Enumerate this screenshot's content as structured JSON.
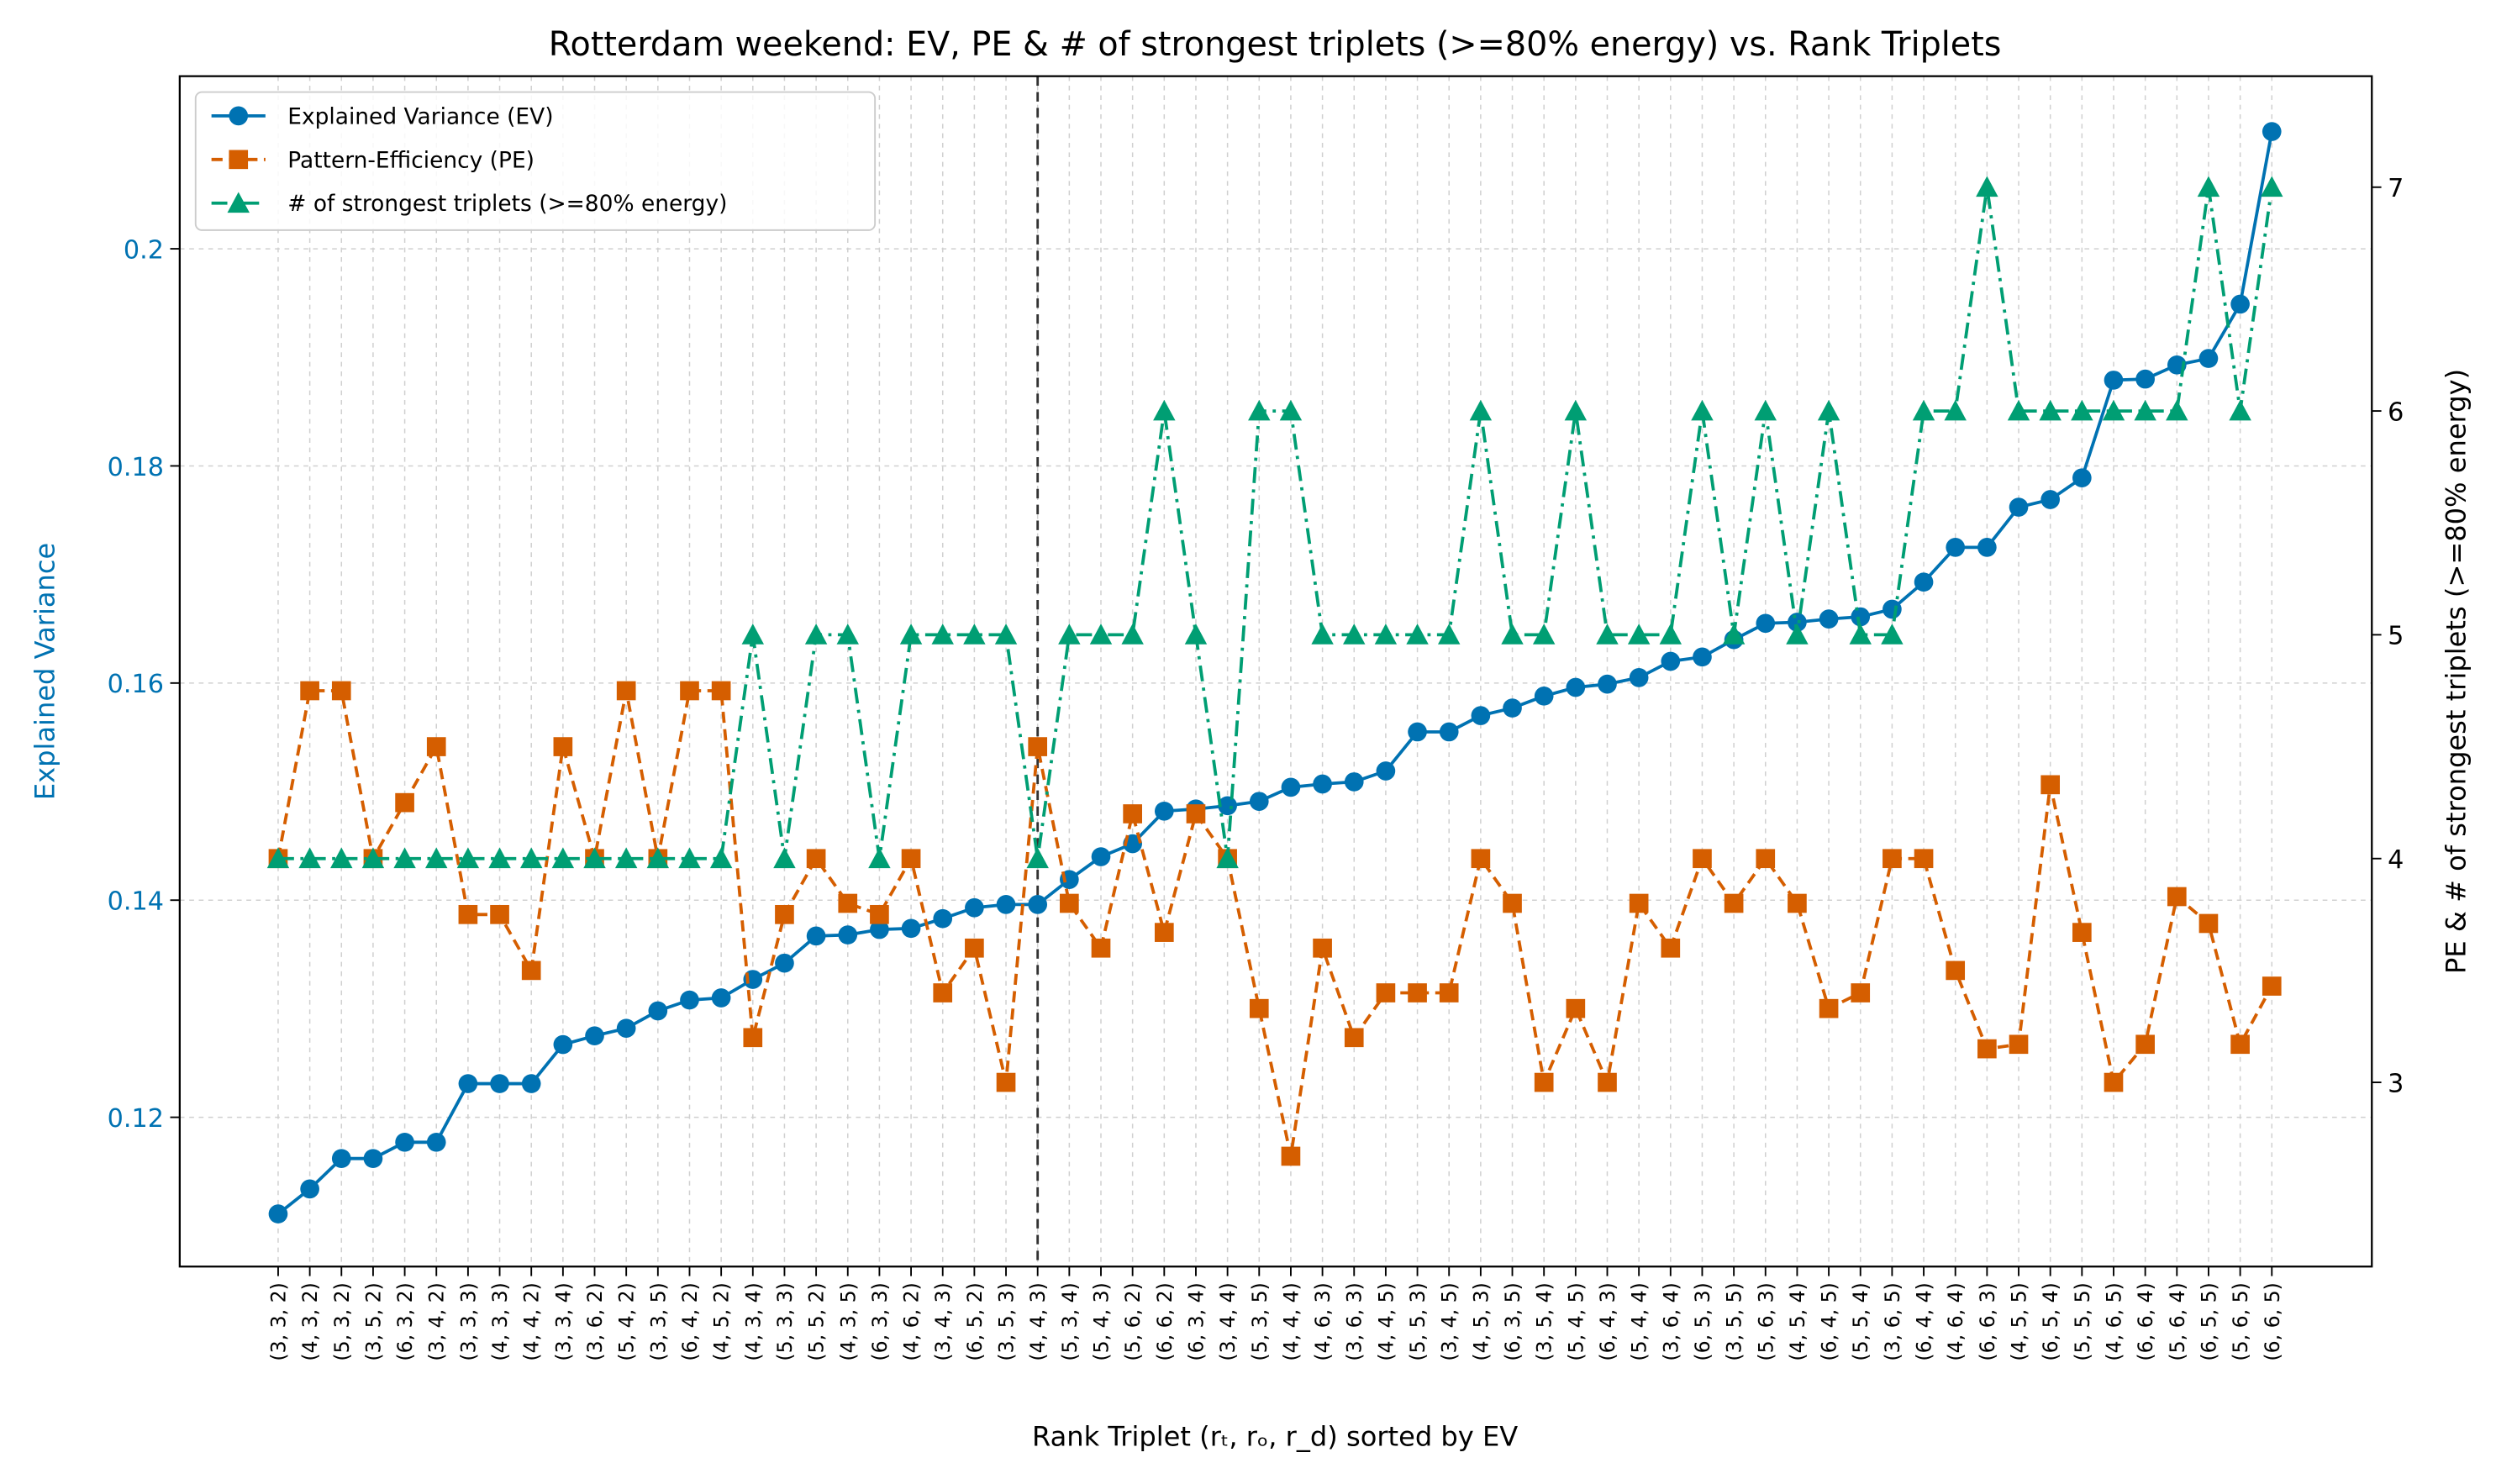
{
  "chart_data": {
    "type": "line",
    "title": "Rotterdam weekend: EV, PE & # of strongest triplets (>=80% energy) vs. Rank Triplets",
    "x_label": "Rank Triplet (rₜ, rₒ, r_d) sorted by EV",
    "y_label": "Explained Variance",
    "y2_label": "PE & # of strongest triplets (>=80% energy)",
    "categories": [
      "(3, 3, 2)",
      "(4, 3, 2)",
      "(5, 3, 2)",
      "(3, 5, 2)",
      "(6, 3, 2)",
      "(3, 4, 2)",
      "(3, 3, 3)",
      "(4, 3, 3)",
      "(4, 4, 2)",
      "(3, 3, 4)",
      "(3, 6, 2)",
      "(5, 4, 2)",
      "(3, 3, 5)",
      "(6, 4, 2)",
      "(4, 5, 2)",
      "(4, 3, 4)",
      "(5, 3, 3)",
      "(5, 5, 2)",
      "(4, 3, 5)",
      "(6, 3, 3)",
      "(4, 6, 2)",
      "(3, 4, 3)",
      "(6, 5, 2)",
      "(3, 5, 3)",
      "(4, 4, 3)",
      "(5, 3, 4)",
      "(5, 4, 3)",
      "(5, 6, 2)",
      "(6, 6, 2)",
      "(6, 3, 4)",
      "(3, 4, 4)",
      "(5, 3, 5)",
      "(4, 4, 4)",
      "(4, 6, 3)",
      "(3, 6, 3)",
      "(4, 4, 5)",
      "(5, 5, 3)",
      "(3, 4, 5)",
      "(4, 5, 3)",
      "(6, 3, 5)",
      "(3, 5, 4)",
      "(5, 4, 5)",
      "(6, 4, 3)",
      "(5, 4, 4)",
      "(3, 6, 4)",
      "(6, 5, 3)",
      "(3, 5, 5)",
      "(5, 6, 3)",
      "(4, 5, 4)",
      "(6, 4, 5)",
      "(5, 5, 4)",
      "(3, 6, 5)",
      "(6, 4, 4)",
      "(4, 6, 4)",
      "(6, 6, 3)",
      "(4, 5, 5)",
      "(6, 5, 4)",
      "(5, 5, 5)",
      "(4, 6, 5)",
      "(6, 6, 4)",
      "(5, 6, 4)",
      "(6, 5, 5)",
      "(5, 6, 5)",
      "(6, 6, 5)"
    ],
    "series": [
      {
        "name": "Explained Variance (EV)",
        "color": "#0072b2",
        "marker": "circle",
        "linestyle": "solid",
        "axis": "y",
        "values": [
          0.1111,
          0.1134,
          0.1162,
          0.1162,
          0.1177,
          0.1177,
          0.1231,
          0.1231,
          0.1231,
          0.1267,
          0.1275,
          0.1282,
          0.1298,
          0.1308,
          0.131,
          0.1327,
          0.1342,
          0.1367,
          0.1368,
          0.1373,
          0.1374,
          0.1383,
          0.1393,
          0.1396,
          0.1396,
          0.1419,
          0.144,
          0.1452,
          0.1482,
          0.1484,
          0.1487,
          0.1491,
          0.1504,
          0.1507,
          0.1509,
          0.1519,
          0.1555,
          0.1555,
          0.157,
          0.1577,
          0.1588,
          0.1596,
          0.1599,
          0.1605,
          0.162,
          0.1624,
          0.164,
          0.1655,
          0.1656,
          0.1659,
          0.1661,
          0.1668,
          0.1693,
          0.1725,
          0.1725,
          0.1762,
          0.1769,
          0.1789,
          0.1879,
          0.188,
          0.1893,
          0.1899,
          0.1949,
          0.2108
        ]
      },
      {
        "name": "Pattern-Efficiency (PE)",
        "color": "#d55e00",
        "marker": "square",
        "linestyle": "dashed",
        "axis": "y2",
        "values": [
          4.0,
          4.75,
          4.75,
          4.0,
          4.25,
          4.5,
          3.75,
          3.75,
          3.5,
          4.5,
          4.0,
          4.75,
          4.0,
          4.75,
          4.75,
          3.2,
          3.75,
          4.0,
          3.8,
          3.75,
          4.0,
          3.4,
          3.6,
          3.0,
          4.5,
          3.8,
          3.6,
          4.2,
          3.67,
          4.2,
          4.0,
          3.33,
          2.67,
          3.6,
          3.2,
          3.4,
          3.4,
          3.4,
          4.0,
          3.8,
          3.0,
          3.33,
          3.0,
          3.8,
          3.6,
          4.0,
          3.8,
          4.0,
          3.8,
          3.33,
          3.4,
          4.0,
          4.0,
          3.5,
          3.15,
          3.17,
          4.33,
          3.67,
          3.0,
          3.17,
          3.83,
          3.71,
          3.17,
          3.43
        ]
      },
      {
        "name": "# of strongest triplets (>=80% energy)",
        "color": "#009e73",
        "marker": "triangle",
        "linestyle": "dashdot",
        "axis": "y2",
        "values": [
          4,
          4,
          4,
          4,
          4,
          4,
          4,
          4,
          4,
          4,
          4,
          4,
          4,
          4,
          4,
          5,
          4,
          5,
          5,
          4,
          5,
          5,
          5,
          5,
          4,
          5,
          5,
          5,
          6,
          5,
          4,
          6,
          6,
          5,
          5,
          5,
          5,
          5,
          6,
          5,
          5,
          6,
          5,
          5,
          5,
          6,
          5,
          6,
          5,
          6,
          5,
          5,
          6,
          6,
          7,
          6,
          6,
          6,
          6,
          6,
          6,
          7,
          6,
          7
        ]
      }
    ],
    "ylim": [
      0.10625,
      0.2159
    ],
    "yticks": [
      0.12,
      0.14,
      0.16,
      0.18,
      0.2
    ],
    "y2lim": [
      2.177,
      7.496
    ],
    "y2ticks": [
      3,
      4,
      5,
      6,
      7
    ],
    "vline_category": "(4, 4, 3)",
    "grid": true,
    "legend": "upper left"
  }
}
